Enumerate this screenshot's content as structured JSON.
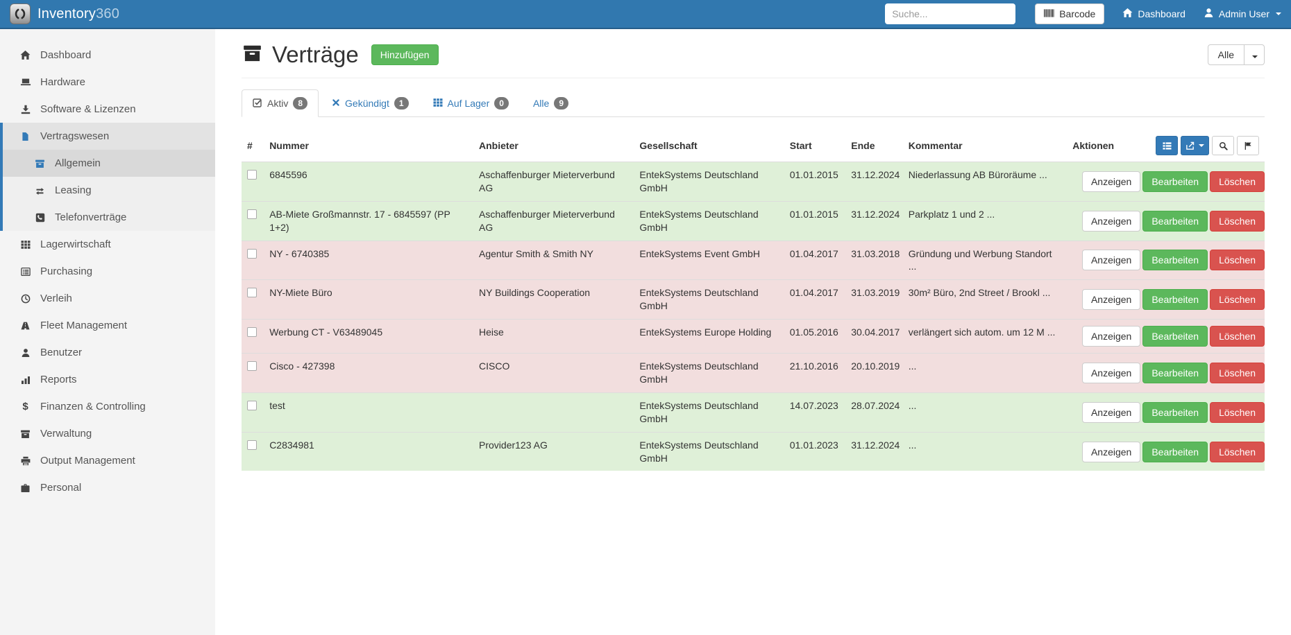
{
  "navbar": {
    "brand_name": "Inventory",
    "brand_suffix": "360",
    "search": {
      "placeholder": "Suche..."
    },
    "barcode_button": "Barcode",
    "dashboard_link": "Dashboard",
    "user_menu": "Admin User"
  },
  "sidebar": {
    "items": [
      {
        "label": "Dashboard",
        "icon": "home"
      },
      {
        "label": "Hardware",
        "icon": "laptop"
      },
      {
        "label": "Software & Lizenzen",
        "icon": "download"
      },
      {
        "label": "Vertragswesen",
        "icon": "file",
        "active": true,
        "children": [
          {
            "label": "Allgemein",
            "icon": "archive",
            "active": true
          },
          {
            "label": "Leasing",
            "icon": "exchange"
          },
          {
            "label": "Telefonverträge",
            "icon": "phone"
          }
        ]
      },
      {
        "label": "Lagerwirtschaft",
        "icon": "grid"
      },
      {
        "label": "Purchasing",
        "icon": "list-alt"
      },
      {
        "label": "Verleih",
        "icon": "clock"
      },
      {
        "label": "Fleet Management",
        "icon": "road"
      },
      {
        "label": "Benutzer",
        "icon": "user"
      },
      {
        "label": "Reports",
        "icon": "bar-chart"
      },
      {
        "label": "Finanzen & Controlling",
        "icon": "dollar"
      },
      {
        "label": "Verwaltung",
        "icon": "archive"
      },
      {
        "label": "Output Management",
        "icon": "print"
      },
      {
        "label": "Personal",
        "icon": "briefcase"
      }
    ]
  },
  "page": {
    "title": "Verträge",
    "add_button": "Hinzufügen",
    "filter_button": "Alle"
  },
  "tabs": [
    {
      "label": "Aktiv",
      "count": "8",
      "icon": "check",
      "active": true
    },
    {
      "label": "Gekündigt",
      "count": "1",
      "icon": "x"
    },
    {
      "label": "Auf Lager",
      "count": "0",
      "icon": "grid"
    },
    {
      "label": "Alle",
      "count": "9",
      "icon": null
    }
  ],
  "table": {
    "headers": {
      "check": "#",
      "nummer": "Nummer",
      "anbieter": "Anbieter",
      "gesellschaft": "Gesellschaft",
      "start": "Start",
      "ende": "Ende",
      "kommentar": "Kommentar",
      "aktionen": "Aktionen"
    },
    "row_actions": {
      "view": "Anzeigen",
      "edit": "Bearbeiten",
      "delete": "Löschen"
    },
    "rows": [
      {
        "nummer": "6845596",
        "anbieter": "Aschaffenburger Mieterverbund AG",
        "gesellschaft": "EntekSystems Deutschland GmbH",
        "start": "01.01.2015",
        "ende": "31.12.2024",
        "kommentar": "Niederlassung AB Büroräume ...",
        "status": "green"
      },
      {
        "nummer": "AB-Miete Großmannstr. 17 - 6845597 (PP 1+2)",
        "anbieter": "Aschaffenburger Mieterverbund AG",
        "gesellschaft": "EntekSystems Deutschland GmbH",
        "start": "01.01.2015",
        "ende": "31.12.2024",
        "kommentar": "Parkplatz 1 und 2 ...",
        "status": "green"
      },
      {
        "nummer": "NY - 6740385",
        "anbieter": "Agentur Smith & Smith NY",
        "gesellschaft": "EntekSystems Event GmbH",
        "start": "01.04.2017",
        "ende": "31.03.2018",
        "kommentar": "Gründung und Werbung Standort ...",
        "status": "red"
      },
      {
        "nummer": "NY-Miete Büro",
        "anbieter": "NY Buildings Cooperation",
        "gesellschaft": "EntekSystems Deutschland GmbH",
        "start": "01.04.2017",
        "ende": "31.03.2019",
        "kommentar": "30m² Büro, 2nd Street / Brookl ...",
        "status": "red"
      },
      {
        "nummer": "Werbung CT - V63489045",
        "anbieter": "Heise",
        "gesellschaft": "EntekSystems Europe Holding",
        "start": "01.05.2016",
        "ende": "30.04.2017",
        "kommentar": "verlängert sich autom. um 12 M ...",
        "status": "red"
      },
      {
        "nummer": "Cisco - 427398",
        "anbieter": "CISCO",
        "gesellschaft": "EntekSystems Deutschland GmbH",
        "start": "21.10.2016",
        "ende": "20.10.2019",
        "kommentar": "...",
        "status": "red"
      },
      {
        "nummer": "test",
        "anbieter": "",
        "gesellschaft": "EntekSystems Deutschland GmbH",
        "start": "14.07.2023",
        "ende": "28.07.2024",
        "kommentar": "...",
        "status": "green"
      },
      {
        "nummer": "C2834981",
        "anbieter": "Provider123 AG",
        "gesellschaft": "EntekSystems Deutschland GmbH",
        "start": "01.01.2023",
        "ende": "31.12.2024",
        "kommentar": "...",
        "status": "green"
      }
    ]
  },
  "colors": {
    "navbar_bg": "#3178af",
    "accent_blue": "#337ab7",
    "success_green": "#5cb85c",
    "danger_red": "#d9534f",
    "row_active_green": "#dff0d8",
    "row_expired_red": "#f2dede",
    "badge_gray": "#777777",
    "sidebar_bg": "#f4f4f4"
  }
}
